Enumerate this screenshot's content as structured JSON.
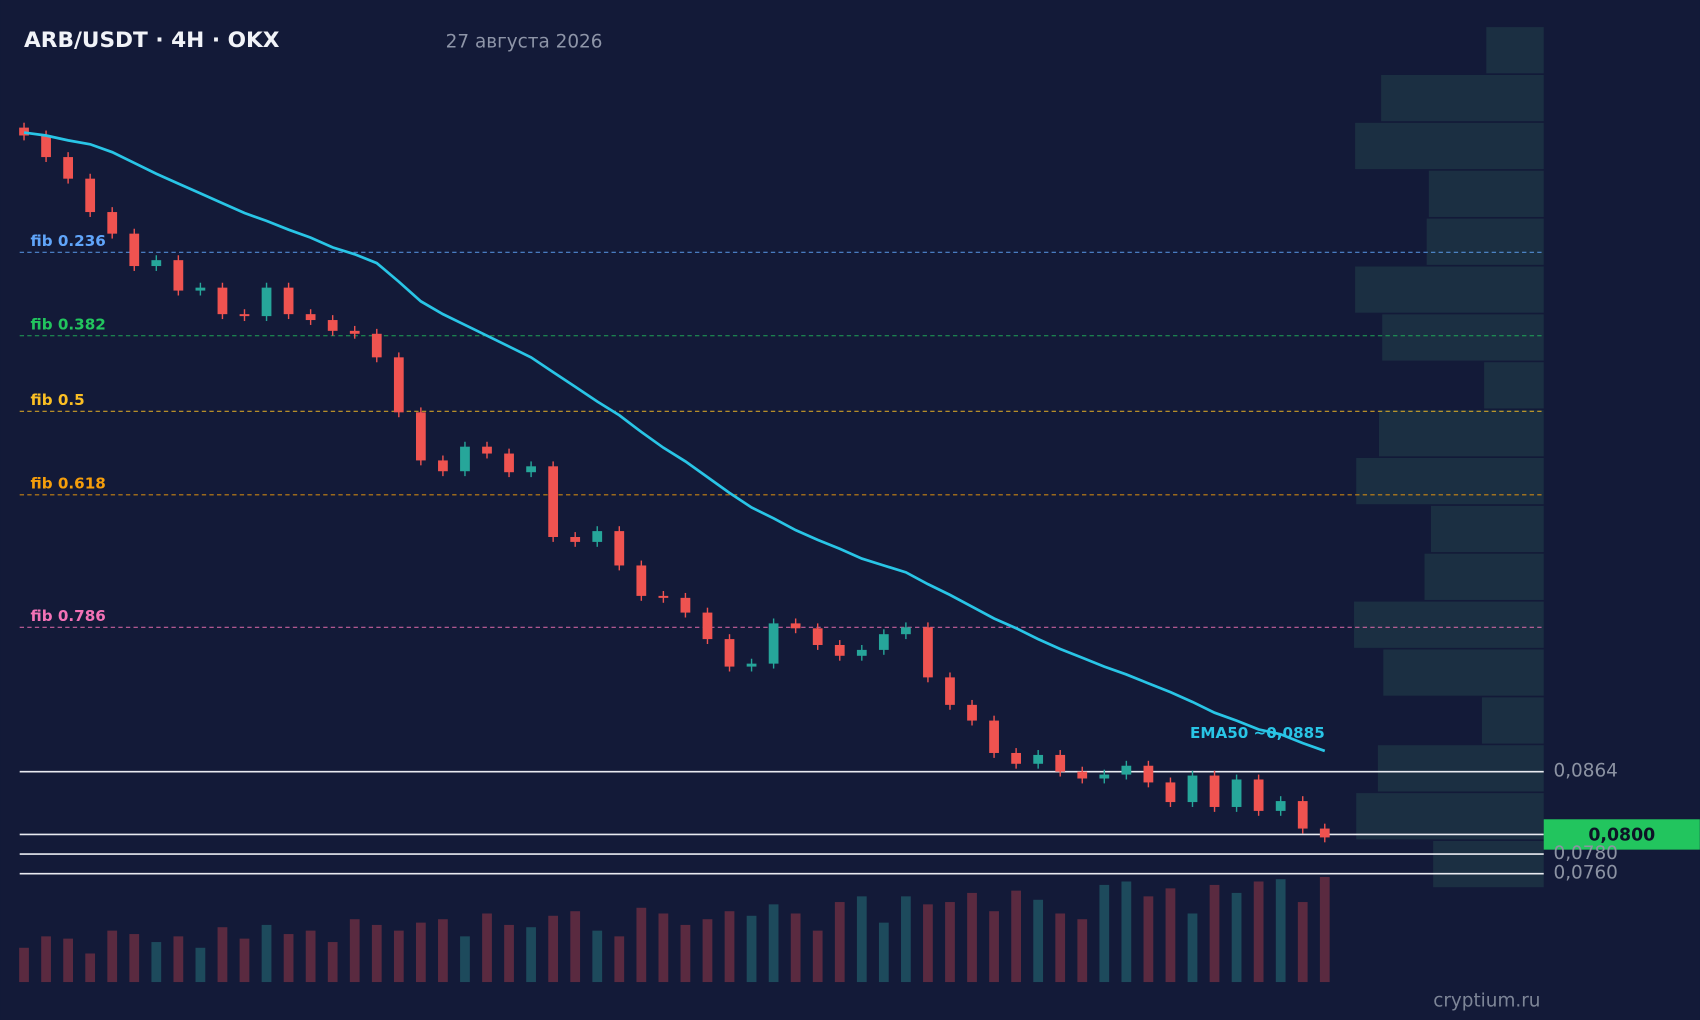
{
  "header": {
    "title": "ARB/USDT · 4H · OKX",
    "date": "27 августа 2026"
  },
  "chart_data": {
    "type": "candlestick",
    "ylim": [
      0.0611,
      0.165
    ],
    "up_color": "#26a69a",
    "down_color": "#ef5350",
    "open": [
      0.152,
      0.1512,
      0.149,
      0.1468,
      0.1434,
      0.1412,
      0.1379,
      0.1385,
      0.1354,
      0.1357,
      0.133,
      0.1328,
      0.1357,
      0.133,
      0.1324,
      0.1313,
      0.131,
      0.1286,
      0.123,
      0.1181,
      0.117,
      0.1195,
      0.1188,
      0.1169,
      0.1175,
      0.1103,
      0.1098,
      0.1109,
      0.1074,
      0.1043,
      0.1041,
      0.1026,
      0.0999,
      0.0971,
      0.0974,
      0.1015,
      0.101,
      0.0993,
      0.0982,
      0.0988,
      0.1004,
      0.1011,
      0.096,
      0.0932,
      0.0916,
      0.0883,
      0.0872,
      0.0881,
      0.0864,
      0.0857,
      0.0861,
      0.087,
      0.0853,
      0.0833,
      0.086,
      0.0828,
      0.0856,
      0.0824,
      0.0834,
      0.0806
    ],
    "high": [
      0.1525,
      0.1517,
      0.1495,
      0.1473,
      0.1439,
      0.1417,
      0.139,
      0.139,
      0.1362,
      0.1362,
      0.1335,
      0.1362,
      0.1362,
      0.1335,
      0.1329,
      0.1318,
      0.1315,
      0.1291,
      0.1235,
      0.1186,
      0.12,
      0.12,
      0.1193,
      0.118,
      0.118,
      0.1108,
      0.1114,
      0.1114,
      0.1079,
      0.1048,
      0.1046,
      0.1031,
      0.1004,
      0.0979,
      0.102,
      0.102,
      0.1015,
      0.0998,
      0.0993,
      0.1009,
      0.1016,
      0.1016,
      0.0965,
      0.0937,
      0.0921,
      0.0888,
      0.0886,
      0.0886,
      0.0869,
      0.0866,
      0.0875,
      0.0875,
      0.0858,
      0.0865,
      0.0865,
      0.0861,
      0.0861,
      0.0839,
      0.0839,
      0.0811
    ],
    "low": [
      0.1507,
      0.1485,
      0.1463,
      0.1429,
      0.1407,
      0.1374,
      0.1374,
      0.1349,
      0.1349,
      0.1325,
      0.1323,
      0.1323,
      0.1325,
      0.1319,
      0.1308,
      0.1305,
      0.1281,
      0.1225,
      0.1176,
      0.1165,
      0.1165,
      0.1183,
      0.1164,
      0.1164,
      0.1098,
      0.1093,
      0.1093,
      0.1069,
      0.1038,
      0.1036,
      0.1021,
      0.0994,
      0.0966,
      0.0966,
      0.0969,
      0.1005,
      0.0988,
      0.0977,
      0.0977,
      0.0983,
      0.0999,
      0.0955,
      0.0927,
      0.0911,
      0.0878,
      0.0867,
      0.0867,
      0.0859,
      0.0852,
      0.0852,
      0.0856,
      0.0848,
      0.0828,
      0.0828,
      0.0823,
      0.0823,
      0.0819,
      0.0819,
      0.0801,
      0.0792
    ],
    "close": [
      0.1512,
      0.149,
      0.1468,
      0.1434,
      0.1412,
      0.1379,
      0.1385,
      0.1354,
      0.1357,
      0.133,
      0.1328,
      0.1357,
      0.133,
      0.1324,
      0.1313,
      0.131,
      0.1286,
      0.123,
      0.1181,
      0.117,
      0.1195,
      0.1188,
      0.1169,
      0.1175,
      0.1103,
      0.1098,
      0.1109,
      0.1074,
      0.1043,
      0.1041,
      0.1026,
      0.0999,
      0.0971,
      0.0974,
      0.1015,
      0.101,
      0.0993,
      0.0982,
      0.0988,
      0.1004,
      0.1011,
      0.096,
      0.0932,
      0.0916,
      0.0883,
      0.0872,
      0.0881,
      0.0864,
      0.0857,
      0.0861,
      0.087,
      0.0853,
      0.0833,
      0.086,
      0.0828,
      0.0856,
      0.0824,
      0.0834,
      0.0806,
      0.0797
    ],
    "ema": {
      "label": "EMA50 ~0,0885",
      "color": "#29c5e6",
      "values": [
        0.1515,
        0.1512,
        0.1507,
        0.1503,
        0.1495,
        0.1484,
        0.1473,
        0.1463,
        0.1453,
        0.1443,
        0.1433,
        0.1425,
        0.1416,
        0.1408,
        0.1398,
        0.1391,
        0.1382,
        0.1363,
        0.1343,
        0.133,
        0.1319,
        0.1308,
        0.1297,
        0.1286,
        0.1271,
        0.1256,
        0.1241,
        0.1227,
        0.121,
        0.1194,
        0.118,
        0.1164,
        0.1148,
        0.1133,
        0.1122,
        0.111,
        0.11,
        0.1091,
        0.1081,
        0.1074,
        0.1067,
        0.1055,
        0.1044,
        0.1032,
        0.102,
        0.101,
        0.0999,
        0.0989,
        0.098,
        0.0971,
        0.0963,
        0.0954,
        0.0945,
        0.0935,
        0.0924,
        0.0916,
        0.0907,
        0.0902,
        0.0893,
        0.0885
      ]
    },
    "volume": {
      "up_color": "#1d4a5c",
      "down_color": "#5a2a40",
      "values": [
        30,
        40,
        38,
        25,
        45,
        42,
        35,
        40,
        30,
        48,
        38,
        50,
        42,
        45,
        35,
        55,
        50,
        45,
        52,
        55,
        40,
        60,
        50,
        48,
        58,
        62,
        45,
        40,
        65,
        60,
        50,
        55,
        62,
        58,
        68,
        60,
        45,
        70,
        75,
        52,
        75,
        68,
        70,
        78,
        62,
        80,
        72,
        60,
        55,
        85,
        88,
        75,
        82,
        60,
        85,
        78,
        88,
        90,
        70,
        92
      ]
    },
    "fib_levels": [
      {
        "label": "fib 0.236",
        "value": 0.1393,
        "color": "#60a5fa"
      },
      {
        "label": "fib 0.382",
        "value": 0.1308,
        "color": "#22c55e"
      },
      {
        "label": "fib 0.5",
        "value": 0.1231,
        "color": "#fbbf24"
      },
      {
        "label": "fib 0.618",
        "value": 0.1146,
        "color": "#f59e0b"
      },
      {
        "label": "fib 0.786",
        "value": 0.1011,
        "color": "#f472b6"
      }
    ],
    "levels": [
      {
        "value": 0.0864,
        "label": "0,0864"
      },
      {
        "value": 0.08,
        "label": "0,0800",
        "current": true
      },
      {
        "value": 0.078,
        "label": "0,0780"
      },
      {
        "value": 0.076,
        "label": "0,0760"
      }
    ],
    "volume_profile": {
      "color": "#1b2f42",
      "values": [
        53,
        150,
        174,
        106,
        108,
        174,
        149,
        55,
        152,
        173,
        104,
        110,
        175,
        148,
        57,
        153,
        173,
        102
      ]
    }
  },
  "watermark": "cryptium.ru"
}
